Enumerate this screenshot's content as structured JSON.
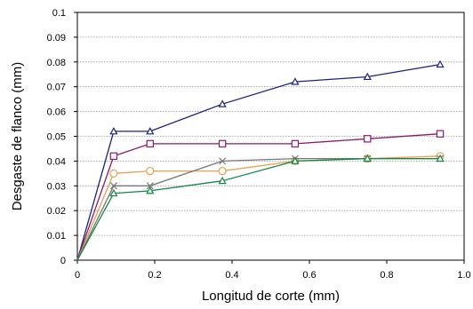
{
  "chart_data": {
    "type": "line",
    "title": "",
    "xlabel": "Longitud de corte (mm)",
    "ylabel": "Desgaste de flanco (mm)",
    "xlim": [
      0,
      1.0
    ],
    "ylim": [
      0,
      0.1
    ],
    "xticks": [
      0,
      0.2,
      0.4,
      0.6,
      0.8,
      1.0
    ],
    "xtick_labels": [
      "0",
      "0.2",
      "0.4",
      "0.6",
      "0.8",
      "1.0"
    ],
    "yticks": [
      0,
      0.01,
      0.02,
      0.03,
      0.04,
      0.05,
      0.06,
      0.07,
      0.08,
      0.09,
      0.1
    ],
    "ytick_labels": [
      "0",
      "0.01",
      "0.02",
      "0.03",
      "0.04",
      "0.05",
      "0.06",
      "0.07",
      "0.08",
      "0.09",
      "0.1"
    ],
    "grid": "horizontal",
    "legend": "none",
    "series": [
      {
        "marker": "triangle",
        "color": "#1a237e",
        "points": [
          [
            0,
            0
          ],
          [
            0.094,
            0.052
          ],
          [
            0.188,
            0.052
          ],
          [
            0.375,
            0.063
          ],
          [
            0.563,
            0.072
          ],
          [
            0.75,
            0.074
          ],
          [
            0.938,
            0.079
          ]
        ]
      },
      {
        "marker": "square",
        "color": "#8b1a6b",
        "points": [
          [
            0,
            0
          ],
          [
            0.094,
            0.042
          ],
          [
            0.188,
            0.047
          ],
          [
            0.375,
            0.047
          ],
          [
            0.563,
            0.047
          ],
          [
            0.75,
            0.049
          ],
          [
            0.938,
            0.051
          ]
        ]
      },
      {
        "marker": "circle",
        "color": "#e8a050",
        "points": [
          [
            0,
            0
          ],
          [
            0.094,
            0.035
          ],
          [
            0.188,
            0.036
          ],
          [
            0.375,
            0.036
          ],
          [
            0.563,
            0.04
          ],
          [
            0.75,
            0.041
          ],
          [
            0.938,
            0.042
          ]
        ]
      },
      {
        "marker": "cross",
        "color": "#777777",
        "points": [
          [
            0,
            0
          ],
          [
            0.094,
            0.03
          ],
          [
            0.188,
            0.03
          ],
          [
            0.375,
            0.04
          ],
          [
            0.563,
            0.041
          ],
          [
            0.75,
            0.041
          ],
          [
            0.938,
            0.041
          ]
        ]
      },
      {
        "marker": "triangle",
        "color": "#118844",
        "points": [
          [
            0,
            0
          ],
          [
            0.094,
            0.027
          ],
          [
            0.188,
            0.028
          ],
          [
            0.375,
            0.032
          ],
          [
            0.563,
            0.04
          ],
          [
            0.75,
            0.041
          ],
          [
            0.938,
            0.041
          ]
        ]
      }
    ]
  }
}
